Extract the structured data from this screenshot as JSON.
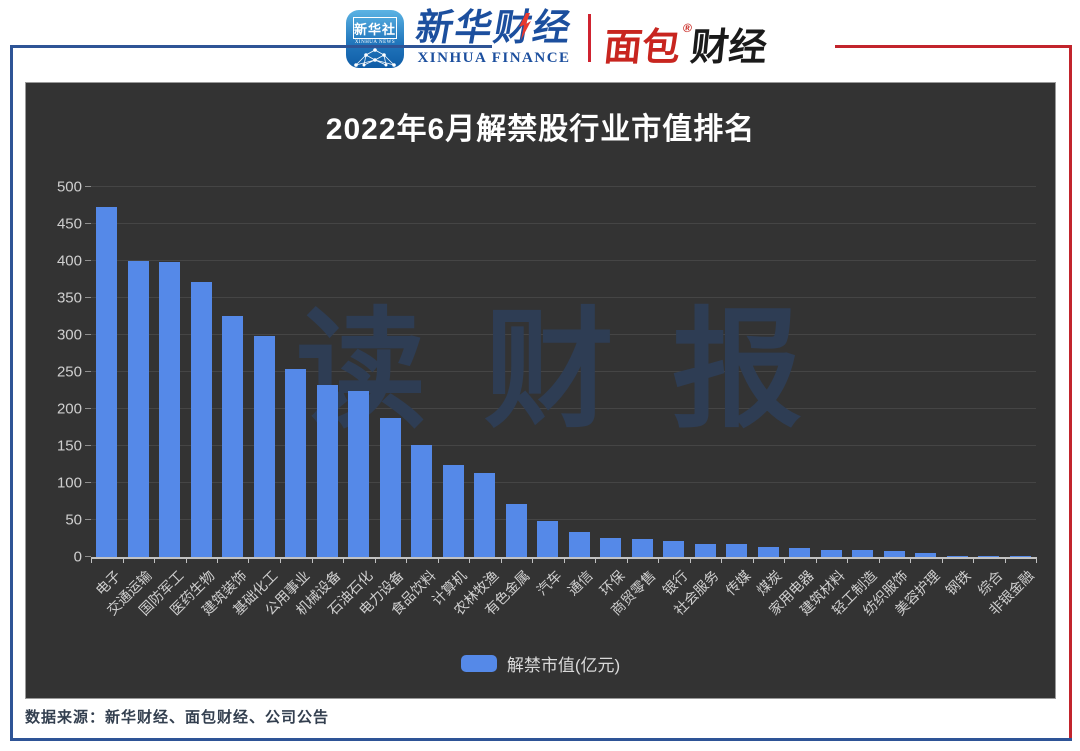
{
  "header": {
    "app_icon": {
      "title": "新华社",
      "subtitle": "XINHUA NEWS"
    },
    "xinhua_finance": {
      "cn": "新华财经",
      "en": "XINHUA FINANCE"
    },
    "mianbao_finance": {
      "part1": "面包",
      "reg": "®",
      "part2": "财经"
    }
  },
  "chart_data": {
    "type": "bar",
    "title": "2022年6月解禁股行业市值排名",
    "categories": [
      "电子",
      "交通运输",
      "国防军工",
      "医药生物",
      "建筑装饰",
      "基础化工",
      "公用事业",
      "机械设备",
      "石油石化",
      "电力设备",
      "食品饮料",
      "计算机",
      "农林牧渔",
      "有色金属",
      "汽车",
      "通信",
      "环保",
      "商贸零售",
      "银行",
      "社会服务",
      "传媒",
      "煤炭",
      "家用电器",
      "建筑材料",
      "轻工制造",
      "纺织服饰",
      "美容护理",
      "钢铁",
      "综合",
      "非银金融"
    ],
    "values": [
      473,
      400,
      398,
      372,
      326,
      298,
      254,
      232,
      225,
      188,
      152,
      125,
      114,
      72,
      49,
      34,
      26,
      25,
      21,
      18,
      17,
      14,
      12,
      10,
      9,
      8,
      5,
      2,
      1,
      0.7
    ],
    "xlabel": "",
    "ylabel": "",
    "ylim": [
      0,
      500
    ],
    "ytick_step": 50,
    "grid": true,
    "legend_label": "解禁市值(亿元)",
    "legend_position": "bottom",
    "watermark": "读财报",
    "bar_color": "#5589e8",
    "panel_background": "#333333"
  },
  "footer": {
    "source": "数据来源：新华财经、面包财经、公司公告"
  }
}
